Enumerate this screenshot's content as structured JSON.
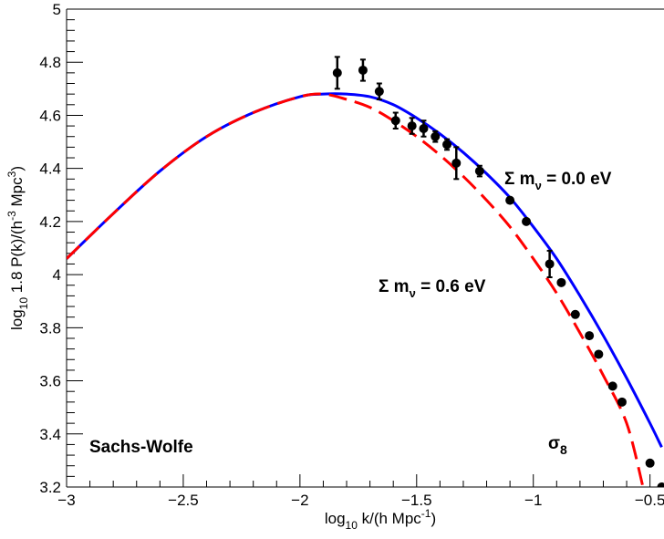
{
  "chart_data": {
    "type": "line",
    "title": "",
    "xlabel": "log10 k/(h Mpc-1)",
    "ylabel": "log10 1.8 P(k)/(h-3 Mpc3)",
    "xlim": [
      -3.0,
      -0.44
    ],
    "ylim": [
      3.2,
      5.0
    ],
    "grid": false,
    "x_ticks": [
      -3,
      -2.5,
      -2,
      -1.5,
      -1,
      -0.5
    ],
    "x_tick_labels": [
      "−3",
      "−2.5",
      "−2",
      "−1.5",
      "−1",
      "−0.5"
    ],
    "y_ticks": [
      3.2,
      3.4,
      3.6,
      3.8,
      4.0,
      4.2,
      4.4,
      4.6,
      4.8,
      5.0
    ],
    "y_tick_labels": [
      "3.2",
      "3.4",
      "3.6",
      "3.8",
      "4",
      "4.2",
      "4.4",
      "4.6",
      "4.8",
      "5"
    ],
    "series": [
      {
        "name": "Σ mν = 0.0 eV",
        "color": "#0000ff",
        "style": "solid",
        "x": [
          -3.0,
          -2.8,
          -2.6,
          -2.4,
          -2.2,
          -2.0,
          -1.9,
          -1.8,
          -1.7,
          -1.6,
          -1.5,
          -1.4,
          -1.3,
          -1.2,
          -1.1,
          -1.0,
          -0.9,
          -0.8,
          -0.7,
          -0.6,
          -0.5,
          -0.45
        ],
        "y": [
          4.06,
          4.23,
          4.39,
          4.52,
          4.61,
          4.67,
          4.68,
          4.68,
          4.67,
          4.64,
          4.59,
          4.53,
          4.46,
          4.38,
          4.29,
          4.18,
          4.06,
          3.92,
          3.77,
          3.61,
          3.44,
          3.35
        ]
      },
      {
        "name": "Σ mν = 0.6 eV",
        "color": "#ff0000",
        "style": "dashed",
        "x": [
          -3.0,
          -2.8,
          -2.6,
          -2.4,
          -2.2,
          -2.0,
          -1.9,
          -1.8,
          -1.7,
          -1.6,
          -1.5,
          -1.4,
          -1.3,
          -1.2,
          -1.1,
          -1.0,
          -0.9,
          -0.8,
          -0.7,
          -0.6,
          -0.53
        ],
        "y": [
          4.06,
          4.23,
          4.39,
          4.52,
          4.61,
          4.67,
          4.68,
          4.66,
          4.63,
          4.58,
          4.52,
          4.45,
          4.37,
          4.28,
          4.18,
          4.06,
          3.93,
          3.78,
          3.62,
          3.44,
          3.2
        ]
      }
    ],
    "points": {
      "name": "data",
      "color": "#000000",
      "x": [
        -1.84,
        -1.73,
        -1.66,
        -1.59,
        -1.52,
        -1.47,
        -1.42,
        -1.37,
        -1.33,
        -1.23,
        -1.1,
        -1.03,
        -0.93,
        -0.88,
        -0.82,
        -0.76,
        -0.72,
        -0.66,
        -0.62,
        -0.5,
        -0.45
      ],
      "y": [
        4.76,
        4.77,
        4.69,
        4.58,
        4.56,
        4.55,
        4.52,
        4.49,
        4.42,
        4.39,
        4.28,
        4.2,
        4.04,
        3.97,
        3.85,
        3.77,
        3.7,
        3.58,
        3.52,
        3.29,
        3.2
      ],
      "err": [
        0.06,
        0.04,
        0.03,
        0.03,
        0.03,
        0.03,
        0.02,
        0.02,
        0.06,
        0.02,
        0.0,
        0.0,
        0.05,
        0.0,
        0.0,
        0.0,
        0.0,
        0.0,
        0.0,
        0.0,
        0.0
      ]
    },
    "annotations": {
      "sachs_wolfe": "Sachs-Wolfe",
      "sigma8": "σ8",
      "m0_label": "Σ mν = 0.0 eV",
      "m6_label": "Σ mν = 0.6 eV"
    }
  }
}
